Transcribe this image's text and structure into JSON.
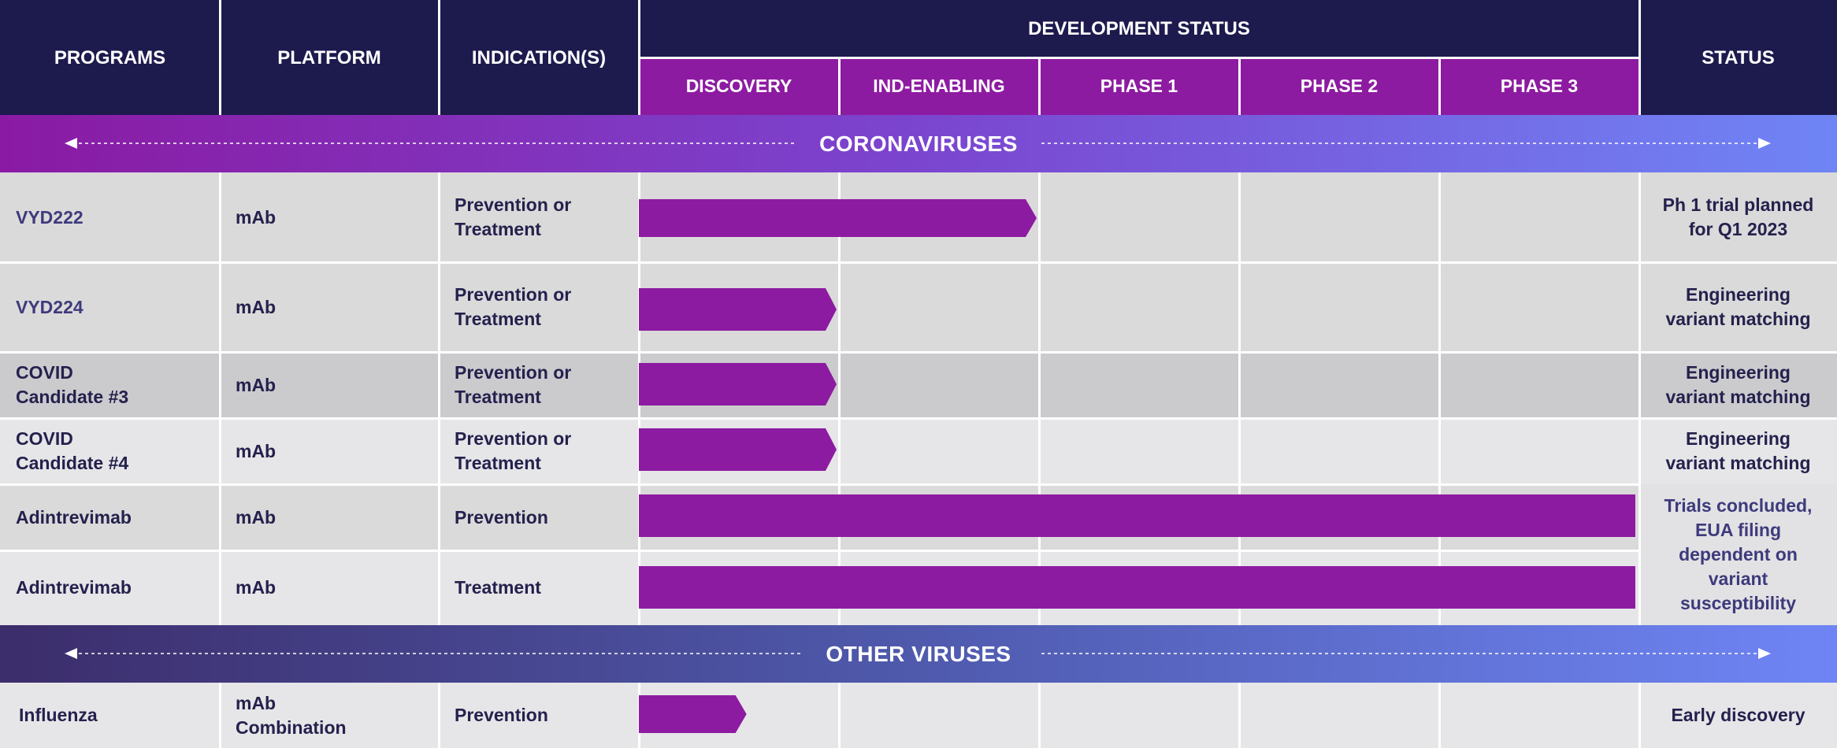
{
  "header": {
    "programs": "PROGRAMS",
    "platform": "PLATFORM",
    "indications": "INDICATION(S)",
    "development_status": "DEVELOPMENT STATUS",
    "status": "STATUS",
    "stages": [
      "DISCOVERY",
      "IND-ENABLING",
      "PHASE 1",
      "PHASE 2",
      "PHASE 3"
    ]
  },
  "sections": [
    {
      "label": "CORONAVIRUSES"
    },
    {
      "label": "OTHER VIRUSES"
    }
  ],
  "colors": {
    "header_bg": "#1d1a4e",
    "stage_bg": "#8d1ba1",
    "bar": "#8d1ba1",
    "text": "#24214d",
    "row_light": "#e6e6e8",
    "row_mid": "#dadada",
    "row_dark": "#cbcbce",
    "band1_start": "#8a1aa3",
    "band1_end": "#6f85f5",
    "band2_start": "#3c2d6b",
    "band2_end": "#6f85f5"
  },
  "rows": [
    {
      "program": "VYD222",
      "platform": "mAb",
      "indication": "Prevention or\nTreatment",
      "status": "Ph 1 trial planned\nfor Q1 2023"
    },
    {
      "program": "VYD224",
      "platform": "mAb",
      "indication": "Prevention or\nTreatment",
      "status": "Engineering\nvariant matching"
    },
    {
      "program": "COVID\nCandidate #3",
      "platform": "mAb",
      "indication": "Prevention or\nTreatment",
      "status": "Engineering\nvariant matching"
    },
    {
      "program": "COVID\nCandidate #4",
      "platform": "mAb",
      "indication": "Prevention or\nTreatment",
      "status": "Engineering\nvariant matching"
    },
    {
      "program": "Adintrevimab",
      "platform": "mAb",
      "indication": "Prevention",
      "status": "Trials concluded,\nEUA filing\ndependent on\nvariant\nsusceptibility"
    },
    {
      "program": "Adintrevimab",
      "platform": "mAb",
      "indication": "Treatment",
      "status": ""
    },
    {
      "program": "Influenza",
      "platform": "mAb\nCombination",
      "indication": "Prevention",
      "status": "Early discovery"
    }
  ],
  "chart_data": {
    "type": "bar",
    "orientation": "horizontal",
    "stages": [
      "DISCOVERY",
      "IND-ENABLING",
      "PHASE 1",
      "PHASE 2",
      "PHASE 3"
    ],
    "categories": [
      "VYD222",
      "VYD224",
      "COVID Candidate #3",
      "COVID Candidate #4",
      "Adintrevimab (Prevention)",
      "Adintrevimab (Treatment)",
      "Influenza"
    ],
    "values": [
      2.0,
      1.0,
      1.0,
      1.0,
      5.0,
      5.0,
      0.55
    ],
    "unit": "stages completed",
    "xlim": [
      0,
      5
    ]
  }
}
